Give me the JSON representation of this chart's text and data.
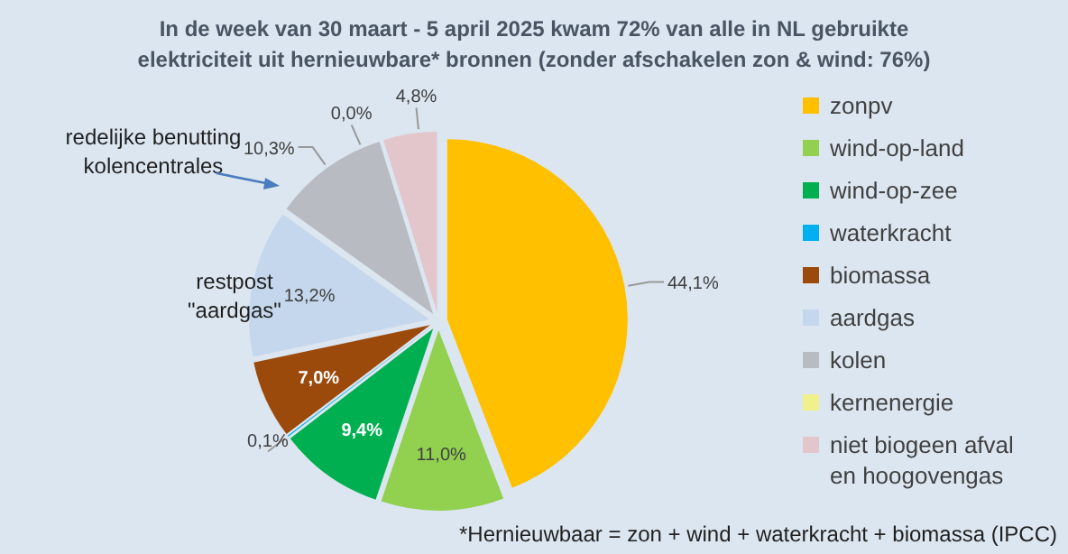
{
  "chart_data": {
    "type": "pie",
    "title": "In de week van 30 maart  - 5 april  2025 kwam 72% van alle in NL gebruikte elektriciteit uit hernieuwbare* bronnen  (zonder afschakelen zon & wind: 76%)",
    "categories": [
      "zonpv",
      "wind-op-land",
      "wind-op-zee",
      "waterkracht",
      "biomassa",
      "aardgas",
      "kolen",
      "kernenergie",
      "niet biogeen afval en hoogovengas"
    ],
    "values": [
      44.1,
      11.0,
      9.4,
      0.1,
      7.0,
      13.2,
      10.3,
      0.0,
      4.8
    ],
    "value_labels": [
      "44,1%",
      "11,0%",
      "9,4%",
      "0,1%",
      "7,0%",
      "13,2%",
      "10,3%",
      "0,0%",
      "4,8%"
    ],
    "colors": [
      "#ffc000",
      "#92d050",
      "#00b050",
      "#00b0f0",
      "#9c4a0c",
      "#c5d7ec",
      "#b8bcc2",
      "#f0f08c",
      "#e2c6cc"
    ],
    "legend": "right",
    "annotations": [
      "restpost\n\"aardgas\"",
      "redelijke  benutting\nkolencentrales",
      "*Hernieuwbaar = zon + wind + waterkracht + biomassa (IPCC)"
    ]
  }
}
